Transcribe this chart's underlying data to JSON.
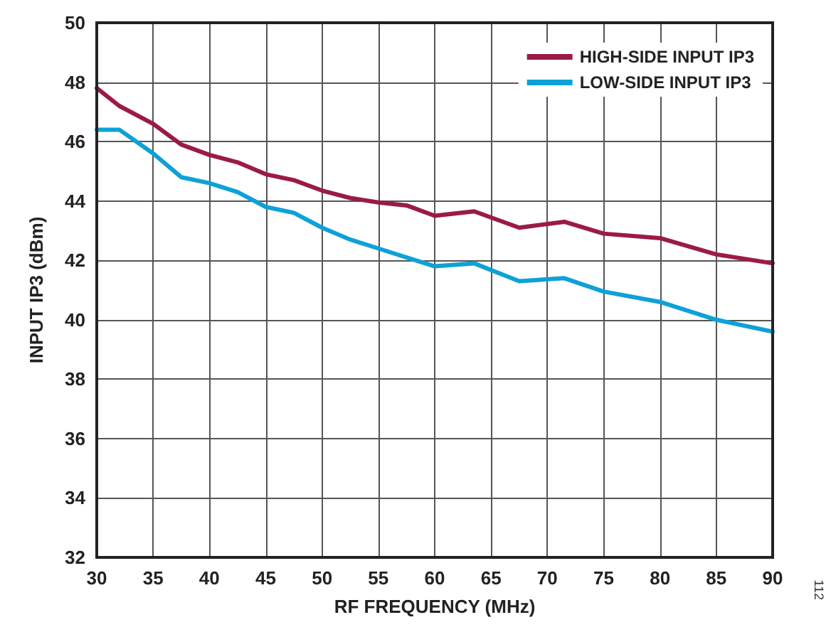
{
  "chart_data": {
    "type": "line",
    "xlabel": "RF FREQUENCY (MHz)",
    "ylabel": "INPUT IP3 (dBm)",
    "x": [
      30,
      32,
      35,
      37.5,
      40,
      42.5,
      45,
      47.5,
      50,
      52.5,
      55,
      57.5,
      60,
      63.5,
      67.5,
      71.5,
      75,
      80,
      85,
      90
    ],
    "series": [
      {
        "name": "HIGH-SIDE INPUT IP3",
        "color": "#9b1b45",
        "values": [
          47.8,
          47.2,
          46.6,
          45.9,
          45.55,
          45.3,
          44.9,
          44.7,
          44.35,
          44.1,
          43.95,
          43.85,
          43.5,
          43.65,
          43.1,
          43.3,
          42.9,
          42.75,
          42.2,
          41.9
        ]
      },
      {
        "name": "LOW-SIDE INPUT IP3",
        "color": "#0ea1d8",
        "values": [
          46.4,
          46.4,
          45.6,
          44.8,
          44.6,
          44.3,
          43.8,
          43.6,
          43.1,
          42.7,
          42.4,
          42.1,
          41.8,
          41.9,
          41.3,
          41.4,
          40.95,
          40.6,
          40.0,
          39.6
        ]
      }
    ],
    "xlim": [
      30,
      90
    ],
    "xticks": [
      30,
      35,
      40,
      45,
      50,
      55,
      60,
      65,
      70,
      75,
      80,
      85,
      90
    ],
    "ylim": [
      32,
      50
    ],
    "yticks": [
      32,
      34,
      36,
      38,
      40,
      42,
      44,
      46,
      48,
      50
    ],
    "grid": true,
    "legend": "top right",
    "marker": "none",
    "line_style": "solid",
    "annotations": [
      "112"
    ]
  }
}
